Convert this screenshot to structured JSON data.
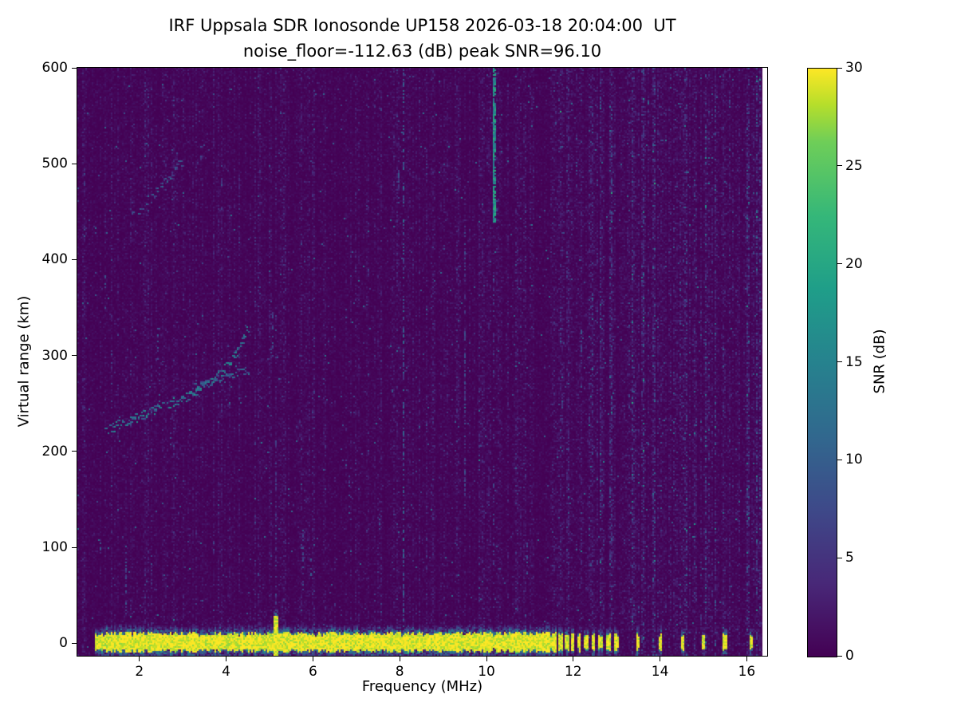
{
  "chart_data": {
    "type": "heatmap",
    "title": "IRF Uppsala SDR Ionosonde UP158 2026-03-18 20:04:00  UT",
    "subtitle": "noise_floor=-112.63 (dB) peak SNR=96.10",
    "xlabel": "Frequency (MHz)",
    "ylabel": "Virtual range (km)",
    "xlim": [
      0.57,
      16.47
    ],
    "ylim": [
      -13,
      600
    ],
    "xticks": [
      2,
      4,
      6,
      8,
      10,
      12,
      14,
      16
    ],
    "yticks": [
      0,
      100,
      200,
      300,
      400,
      500,
      600
    ],
    "data_freq_range": [
      0.57,
      16.36
    ],
    "colorbar": {
      "label": "SNR (dB)",
      "min": 0,
      "max": 30,
      "ticks": [
        0,
        5,
        10,
        15,
        20,
        25,
        30
      ],
      "colormap": "viridis",
      "stops": [
        [
          0.0,
          "#440154"
        ],
        [
          0.125,
          "#482878"
        ],
        [
          0.25,
          "#3e4989"
        ],
        [
          0.375,
          "#31688e"
        ],
        [
          0.5,
          "#26828e"
        ],
        [
          0.625,
          "#1f9e89"
        ],
        [
          0.75,
          "#35b779"
        ],
        [
          0.875,
          "#6ece58"
        ],
        [
          0.9375,
          "#b5de2b"
        ],
        [
          1.0,
          "#fde725"
        ]
      ]
    },
    "features": {
      "background_noise": {
        "mean_snr_db": 0.85,
        "texture": "vertically-striped speckle over dark viridis floor"
      },
      "ground_pulse_band": {
        "freq_start": 0.97,
        "freq_end": 11.62,
        "center_km": 1,
        "half_thickness_km": 9,
        "snr_db": 30,
        "spike": {
          "freq": 5.13,
          "half_thickness_km": 27
        }
      },
      "isolated_pulses": {
        "center_km": 1,
        "half_thickness_km": 8,
        "snr_db": 30,
        "freqs": [
          11.72,
          11.86,
          12.0,
          12.14,
          12.3,
          12.47,
          12.64,
          12.82,
          13.0,
          13.5,
          14.0,
          14.52,
          15.0,
          15.5,
          16.1
        ]
      },
      "echo_traces": [
        {
          "name": "F-layer main trace",
          "snr_db": [
            8,
            18
          ],
          "density": 0.8,
          "points": [
            [
              1.25,
              222
            ],
            [
              1.6,
              228
            ],
            [
              2.0,
              236
            ],
            [
              2.4,
              244
            ],
            [
              2.8,
              251
            ],
            [
              3.2,
              259
            ],
            [
              3.6,
              270
            ],
            [
              3.9,
              282
            ],
            [
              4.15,
              296
            ],
            [
              4.35,
              312
            ],
            [
              4.5,
              328
            ]
          ]
        },
        {
          "name": "F-layer lower branch",
          "snr_db": [
            6,
            14
          ],
          "density": 0.55,
          "points": [
            [
              3.3,
              266
            ],
            [
              3.7,
              272
            ],
            [
              4.1,
              278
            ],
            [
              4.5,
              284
            ]
          ]
        },
        {
          "name": "upper faint oblique trace",
          "snr_db": [
            5,
            12
          ],
          "density": 0.5,
          "points": [
            [
              1.85,
              445
            ],
            [
              2.2,
              462
            ],
            [
              2.6,
              480
            ],
            [
              3.0,
              503
            ]
          ]
        }
      ],
      "vertical_streaks": [
        {
          "freq": 8.08,
          "range_km": [
            -13,
            600
          ],
          "snr_db": [
            4,
            12
          ],
          "density": 0.5,
          "width": 1
        },
        {
          "freq": 10.18,
          "range_km": [
            440,
            600
          ],
          "snr_db": [
            12,
            22
          ],
          "density": 0.95,
          "width": 2
        },
        {
          "freq": 10.18,
          "range_km": [
            -13,
            440
          ],
          "snr_db": [
            3,
            8
          ],
          "density": 0.25,
          "width": 1
        },
        {
          "freq": 9.5,
          "range_km": [
            140,
            440
          ],
          "snr_db": [
            4,
            9
          ],
          "density": 0.35,
          "width": 1
        },
        {
          "freq": 5.16,
          "range_km": [
            0,
            210
          ],
          "snr_db": [
            4,
            9
          ],
          "density": 0.3,
          "width": 1
        },
        {
          "freq": 1.68,
          "range_km": [
            30,
            100
          ],
          "snr_db": [
            5,
            10
          ],
          "density": 0.35,
          "width": 1
        }
      ],
      "interference_comb": {
        "freq_start": 11.7,
        "freq_end": 16.35,
        "spacing_mhz": 0.24,
        "snr_boost": 1.9
      }
    }
  }
}
